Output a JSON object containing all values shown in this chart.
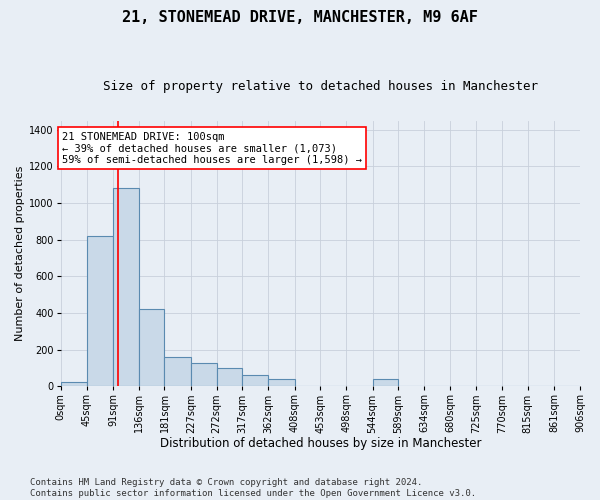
{
  "title1": "21, STONEMEAD DRIVE, MANCHESTER, M9 6AF",
  "title2": "Size of property relative to detached houses in Manchester",
  "xlabel": "Distribution of detached houses by size in Manchester",
  "ylabel": "Number of detached properties",
  "bin_edges": [
    0,
    45,
    91,
    136,
    181,
    227,
    272,
    317,
    362,
    408,
    453,
    498,
    544,
    589,
    634,
    680,
    725,
    770,
    815,
    861,
    906
  ],
  "bar_heights": [
    25,
    820,
    1080,
    420,
    160,
    130,
    100,
    60,
    40,
    0,
    0,
    0,
    40,
    0,
    0,
    0,
    0,
    0,
    0,
    0
  ],
  "bar_color": "#c9d9e8",
  "bar_edge_color": "#5a8ab0",
  "bar_linewidth": 0.8,
  "vline_x": 100,
  "vline_color": "red",
  "vline_linewidth": 1.2,
  "annotation_text": "21 STONEMEAD DRIVE: 100sqm\n← 39% of detached houses are smaller (1,073)\n59% of semi-detached houses are larger (1,598) →",
  "annotation_box_color": "white",
  "annotation_box_edge": "red",
  "annotation_fontsize": 7.5,
  "ylim": [
    0,
    1450
  ],
  "yticks": [
    0,
    200,
    400,
    600,
    800,
    1000,
    1200,
    1400
  ],
  "grid_color": "#c8d0db",
  "background_color": "#e8eef5",
  "plot_bg_color": "#e8eef5",
  "footnote": "Contains HM Land Registry data © Crown copyright and database right 2024.\nContains public sector information licensed under the Open Government Licence v3.0.",
  "footnote_fontsize": 6.5,
  "title1_fontsize": 11,
  "title2_fontsize": 9,
  "xlabel_fontsize": 8.5,
  "ylabel_fontsize": 8,
  "tick_fontsize": 7,
  "tick_labels": [
    "0sqm",
    "45sqm",
    "91sqm",
    "136sqm",
    "181sqm",
    "227sqm",
    "272sqm",
    "317sqm",
    "362sqm",
    "408sqm",
    "453sqm",
    "498sqm",
    "544sqm",
    "589sqm",
    "634sqm",
    "680sqm",
    "725sqm",
    "770sqm",
    "815sqm",
    "861sqm",
    "906sqm"
  ]
}
